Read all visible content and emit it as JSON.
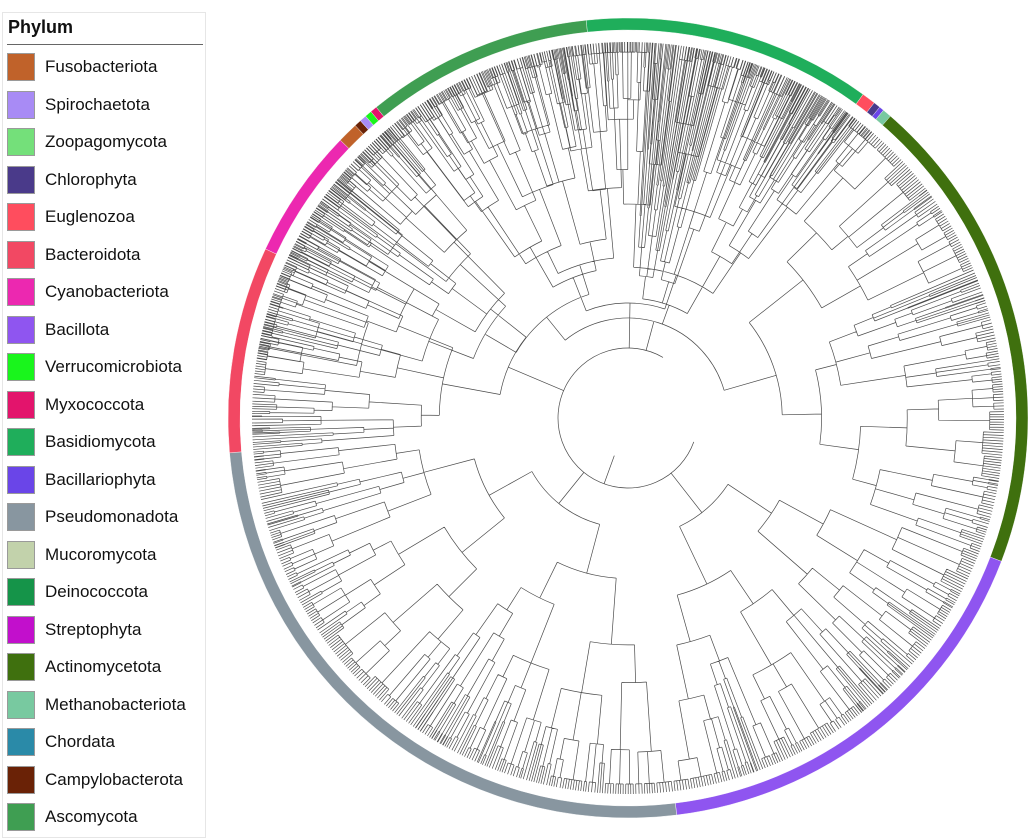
{
  "legend": {
    "title": "Phylum",
    "items": [
      {
        "label": "Fusobacteriota",
        "color": "#c0622a"
      },
      {
        "label": "Spirochaetota",
        "color": "#a88bf5"
      },
      {
        "label": "Zoopagomycota",
        "color": "#74e07a"
      },
      {
        "label": "Chlorophyta",
        "color": "#4a3a8a"
      },
      {
        "label": "Euglenozoa",
        "color": "#ff4d5e"
      },
      {
        "label": "Bacteroidota",
        "color": "#f24863"
      },
      {
        "label": "Cyanobacteriota",
        "color": "#ec28b0"
      },
      {
        "label": "Bacillota",
        "color": "#8f55f0"
      },
      {
        "label": "Verrucomicrobiota",
        "color": "#19f51c"
      },
      {
        "label": "Myxococcota",
        "color": "#e3146c"
      },
      {
        "label": "Basidiomycota",
        "color": "#1fae5b"
      },
      {
        "label": "Bacillariophyta",
        "color": "#6a45e8"
      },
      {
        "label": "Pseudomonadota",
        "color": "#8896a0"
      },
      {
        "label": "Mucoromycota",
        "color": "#c2d2ab"
      },
      {
        "label": "Deinococcota",
        "color": "#159449"
      },
      {
        "label": "Streptophyta",
        "color": "#c20fcc"
      },
      {
        "label": "Actinomycetota",
        "color": "#3f700e"
      },
      {
        "label": "Methanobacteriota",
        "color": "#78c9a0"
      },
      {
        "label": "Chordata",
        "color": "#2a8aa8"
      },
      {
        "label": "Campylobacterota",
        "color": "#6a2206"
      },
      {
        "label": "Ascomycota",
        "color": "#3f9e52"
      }
    ]
  },
  "ring": [
    {
      "phylum": "Actinomycetota",
      "start": -171,
      "end": 21
    },
    {
      "phylum": "Bacillota",
      "start": 21,
      "end": 83
    },
    {
      "phylum": "Pseudomonadota",
      "start": 83,
      "end": 175
    },
    {
      "phylum": "Bacteroidota",
      "start": 175,
      "end": 205
    },
    {
      "phylum": "Cyanobacteriota",
      "start": 205,
      "end": 224
    },
    {
      "phylum": "Fusobacteriota",
      "start": 224,
      "end": 227
    },
    {
      "phylum": "Campylobacterota",
      "start": 227,
      "end": 228
    },
    {
      "phylum": "Spirochaetota",
      "start": 228,
      "end": 229
    },
    {
      "phylum": "Verrucomicrobiota",
      "start": 229,
      "end": 230
    },
    {
      "phylum": "Myxococcota",
      "start": 230,
      "end": 231
    },
    {
      "phylum": "Ascomycota",
      "start": 231,
      "end": 264
    },
    {
      "phylum": "Basidiomycota",
      "start": 264,
      "end": 306
    },
    {
      "phylum": "Euglenozoa",
      "start": 306,
      "end": 308
    },
    {
      "phylum": "Chlorophyta",
      "start": 308,
      "end": 309
    },
    {
      "phylum": "Bacillariophyta",
      "start": 309,
      "end": 309.7
    },
    {
      "phylum": "Methanobacteriota",
      "start": 309.7,
      "end": 311
    }
  ]
}
